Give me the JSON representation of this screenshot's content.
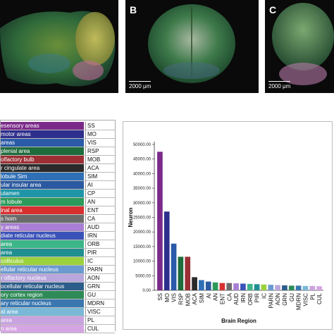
{
  "panels": [
    {
      "letter": "",
      "scale": ""
    },
    {
      "letter": "B",
      "scale": "2000 μm"
    },
    {
      "letter": "C",
      "scale": "2000 μm"
    }
  ],
  "legend": [
    {
      "name": "esensory areas",
      "abbr": "SS",
      "color": "#7b2a8a"
    },
    {
      "name": "motor areas",
      "abbr": "MO",
      "color": "#2e2e8c"
    },
    {
      "name": "areas",
      "abbr": "VIS",
      "color": "#2a5aa8"
    },
    {
      "name": "plenial area",
      "abbr": "RSP",
      "color": "#1e6b3c"
    },
    {
      "name": "olfactory bulb",
      "abbr": "MOB",
      "color": "#9c2f34"
    },
    {
      "name": "r cingulate area",
      "abbr": "ACA",
      "color": "#2a2a2a"
    },
    {
      "name": "lobule Sim",
      "abbr": "SIM",
      "color": "#2f6fb5"
    },
    {
      "name": "ular insular area",
      "abbr": "AI",
      "color": "#2c5aa0"
    },
    {
      "name": "utamen",
      "abbr": "CP",
      "color": "#1f96a8"
    },
    {
      "name": "m lobule",
      "abbr": "AN",
      "color": "#2c9a5a"
    },
    {
      "name": "inal area",
      "abbr": "ENT",
      "color": "#d6302f"
    },
    {
      "name": "s horn",
      "abbr": "CA",
      "color": "#6b6b6b"
    },
    {
      "name": "y areas",
      "abbr": "AUD",
      "color": "#a87fd4"
    },
    {
      "name": "diate reticular nucleus",
      "abbr": "IRN",
      "color": "#3a53b8"
    },
    {
      "name": "area",
      "abbr": "ORB",
      "color": "#3db58a"
    },
    {
      "name": "area",
      "abbr": "PIR",
      "color": "#1f8f8f"
    },
    {
      "name": "colliculus",
      "abbr": "IC",
      "color": "#9ad13d"
    },
    {
      "name": "ellular reticular nucleus",
      "abbr": "PARN",
      "color": "#6a9acf"
    },
    {
      "name": "r olfactory nucleus",
      "abbr": "AON",
      "color": "#b9a6dc"
    },
    {
      "name": "ocellular reticular nucleus",
      "abbr": "GRN",
      "color": "#2c5d8a"
    },
    {
      "name": "ory cortex region",
      "abbr": "GU",
      "color": "#2e8b57"
    },
    {
      "name": "ary reticular nucleus",
      "abbr": "MDRN",
      "color": "#3a77b0"
    },
    {
      "name": "al area",
      "abbr": "VISC",
      "color": "#7ab8d8"
    },
    {
      "name": "area",
      "abbr": "PL",
      "color": "#c9a3e0"
    },
    {
      "name": "n area",
      "abbr": "CUL",
      "color": "#d5a5e3"
    }
  ],
  "chart_data": {
    "type": "bar",
    "categories": [
      "SS",
      "MO",
      "VIS",
      "RSP",
      "MOB",
      "ACA",
      "SIM",
      "AI",
      "AN",
      "ENT",
      "CA",
      "AUD",
      "IRN",
      "ORB",
      "PIR",
      "IC",
      "PARN",
      "AON",
      "GRN",
      "GU",
      "MDRN",
      "VISC",
      "PL",
      "CUL"
    ],
    "values": [
      47500,
      27000,
      16000,
      11500,
      11500,
      4500,
      3500,
      3000,
      2700,
      2500,
      2500,
      2400,
      2300,
      2200,
      2100,
      2000,
      1900,
      1800,
      1700,
      1600,
      1600,
      1500,
      1500,
      1400
    ],
    "colors": [
      "#7b2a8a",
      "#2e2e8c",
      "#2a5aa8",
      "#1e6b3c",
      "#9c2f34",
      "#2a2a2a",
      "#2f6fb5",
      "#2c5aa0",
      "#2c9a5a",
      "#d6302f",
      "#6b6b6b",
      "#a87fd4",
      "#3a53b8",
      "#3db58a",
      "#1f8f8f",
      "#9ad13d",
      "#6a9acf",
      "#b9a6dc",
      "#2c5d8a",
      "#2e8b57",
      "#3a77b0",
      "#7ab8d8",
      "#c9a3e0",
      "#d5a5e3"
    ],
    "ylim": [
      0,
      50000
    ],
    "yticks": [
      "0.00",
      "5000.00",
      "10000.00",
      "15000.00",
      "20000.00",
      "25000.00",
      "30000.00",
      "35000.00",
      "40000.00",
      "45000.00",
      "50000.00"
    ],
    "xlabel": "Brain Region",
    "ylabel": "Neuron"
  }
}
